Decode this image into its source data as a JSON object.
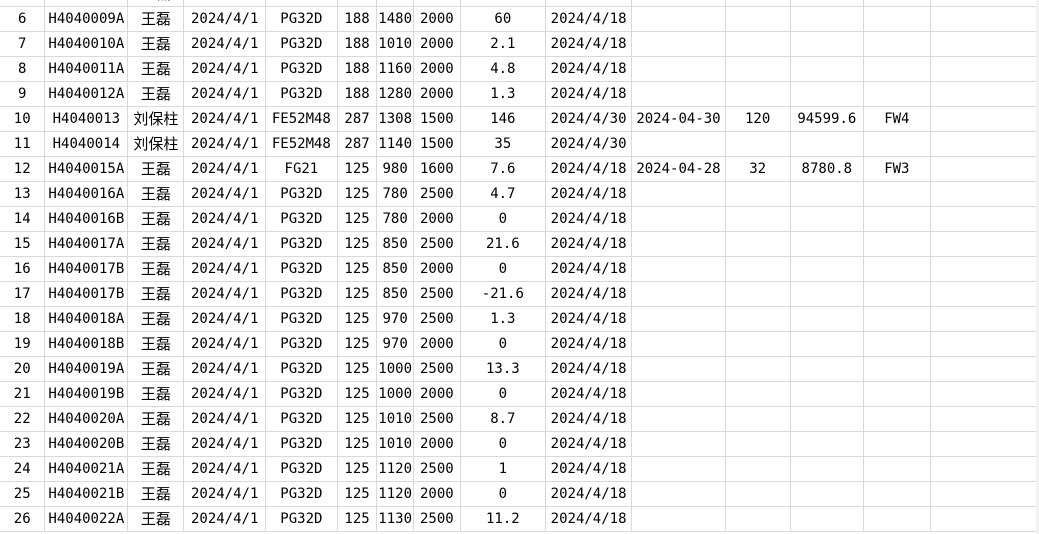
{
  "spreadsheet": {
    "partial_top_row": [
      "",
      "",
      "王磊",
      "",
      "",
      "",
      "",
      "",
      "",
      "",
      "",
      "",
      "",
      "",
      ""
    ],
    "rows": [
      [
        "6",
        "H4040009A",
        "王磊",
        "2024/4/1",
        "PG32D",
        "188",
        "1480",
        "2000",
        "60",
        "2024/4/18",
        "",
        "",
        "",
        "",
        ""
      ],
      [
        "7",
        "H4040010A",
        "王磊",
        "2024/4/1",
        "PG32D",
        "188",
        "1010",
        "2000",
        "2.1",
        "2024/4/18",
        "",
        "",
        "",
        "",
        ""
      ],
      [
        "8",
        "H4040011A",
        "王磊",
        "2024/4/1",
        "PG32D",
        "188",
        "1160",
        "2000",
        "4.8",
        "2024/4/18",
        "",
        "",
        "",
        "",
        ""
      ],
      [
        "9",
        "H4040012A",
        "王磊",
        "2024/4/1",
        "PG32D",
        "188",
        "1280",
        "2000",
        "1.3",
        "2024/4/18",
        "",
        "",
        "",
        "",
        ""
      ],
      [
        "10",
        "H4040013",
        "刘保柱",
        "2024/4/1",
        "FE52M48",
        "287",
        "1308",
        "1500",
        "146",
        "2024/4/30",
        "2024-04-30",
        "120",
        "94599.6",
        "FW4",
        ""
      ],
      [
        "11",
        "H4040014",
        "刘保柱",
        "2024/4/1",
        "FE52M48",
        "287",
        "1140",
        "1500",
        "35",
        "2024/4/30",
        "",
        "",
        "",
        "",
        ""
      ],
      [
        "12",
        "H4040015A",
        "王磊",
        "2024/4/1",
        "FG21",
        "125",
        "980",
        "1600",
        "7.6",
        "2024/4/18",
        "2024-04-28",
        "32",
        "8780.8",
        "FW3",
        ""
      ],
      [
        "13",
        "H4040016A",
        "王磊",
        "2024/4/1",
        "PG32D",
        "125",
        "780",
        "2500",
        "4.7",
        "2024/4/18",
        "",
        "",
        "",
        "",
        ""
      ],
      [
        "14",
        "H4040016B",
        "王磊",
        "2024/4/1",
        "PG32D",
        "125",
        "780",
        "2000",
        "0",
        "2024/4/18",
        "",
        "",
        "",
        "",
        ""
      ],
      [
        "15",
        "H4040017A",
        "王磊",
        "2024/4/1",
        "PG32D",
        "125",
        "850",
        "2500",
        "21.6",
        "2024/4/18",
        "",
        "",
        "",
        "",
        ""
      ],
      [
        "16",
        "H4040017B",
        "王磊",
        "2024/4/1",
        "PG32D",
        "125",
        "850",
        "2000",
        "0",
        "2024/4/18",
        "",
        "",
        "",
        "",
        ""
      ],
      [
        "17",
        "H4040017B",
        "王磊",
        "2024/4/1",
        "PG32D",
        "125",
        "850",
        "2500",
        "-21.6",
        "2024/4/18",
        "",
        "",
        "",
        "",
        ""
      ],
      [
        "18",
        "H4040018A",
        "王磊",
        "2024/4/1",
        "PG32D",
        "125",
        "970",
        "2500",
        "1.3",
        "2024/4/18",
        "",
        "",
        "",
        "",
        ""
      ],
      [
        "19",
        "H4040018B",
        "王磊",
        "2024/4/1",
        "PG32D",
        "125",
        "970",
        "2000",
        "0",
        "2024/4/18",
        "",
        "",
        "",
        "",
        ""
      ],
      [
        "20",
        "H4040019A",
        "王磊",
        "2024/4/1",
        "PG32D",
        "125",
        "1000",
        "2500",
        "13.3",
        "2024/4/18",
        "",
        "",
        "",
        "",
        ""
      ],
      [
        "21",
        "H4040019B",
        "王磊",
        "2024/4/1",
        "PG32D",
        "125",
        "1000",
        "2000",
        "0",
        "2024/4/18",
        "",
        "",
        "",
        "",
        ""
      ],
      [
        "22",
        "H4040020A",
        "王磊",
        "2024/4/1",
        "PG32D",
        "125",
        "1010",
        "2500",
        "8.7",
        "2024/4/18",
        "",
        "",
        "",
        "",
        ""
      ],
      [
        "23",
        "H4040020B",
        "王磊",
        "2024/4/1",
        "PG32D",
        "125",
        "1010",
        "2000",
        "0",
        "2024/4/18",
        "",
        "",
        "",
        "",
        ""
      ],
      [
        "24",
        "H4040021A",
        "王磊",
        "2024/4/1",
        "PG32D",
        "125",
        "1120",
        "2500",
        "1",
        "2024/4/18",
        "",
        "",
        "",
        "",
        ""
      ],
      [
        "25",
        "H4040021B",
        "王磊",
        "2024/4/1",
        "PG32D",
        "125",
        "1120",
        "2000",
        "0",
        "2024/4/18",
        "",
        "",
        "",
        "",
        ""
      ],
      [
        "26",
        "H4040022A",
        "王磊",
        "2024/4/1",
        "PG32D",
        "125",
        "1130",
        "2500",
        "11.2",
        "2024/4/18",
        "",
        "",
        "",
        "",
        ""
      ]
    ]
  }
}
